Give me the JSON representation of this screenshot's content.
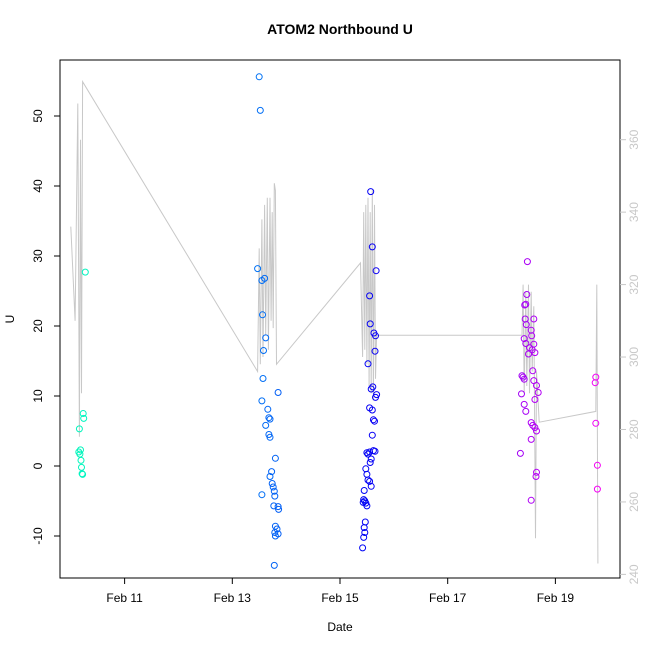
{
  "chart_data": {
    "type": "scatter",
    "title": "ATOM2 Northbound U",
    "xlabel": "Date",
    "ylabel": "U",
    "x_ticks": [
      "Feb 11",
      "Feb 13",
      "Feb 15",
      "Feb 17",
      "Feb 19"
    ],
    "x_tick_days": [
      11,
      13,
      15,
      17,
      19
    ],
    "xlim_days": [
      9.8,
      20.2
    ],
    "ylim": [
      -16,
      58
    ],
    "y_ticks": [
      -10,
      0,
      10,
      20,
      30,
      40,
      50
    ],
    "y2lim": [
      239,
      382
    ],
    "y2_ticks": [
      240,
      260,
      280,
      300,
      320,
      340,
      360
    ],
    "grid": false,
    "colors": {
      "points_start": "#33ffcc",
      "points_end": "#cc33cc",
      "line": "#c8c8c8",
      "frame": "#000000"
    },
    "points": [
      {
        "x": 10.15,
        "y": 2.0
      },
      {
        "x": 10.17,
        "y": 1.7
      },
      {
        "x": 10.18,
        "y": 2.3
      },
      {
        "x": 10.19,
        "y": 0.8
      },
      {
        "x": 10.2,
        "y": -0.2
      },
      {
        "x": 10.21,
        "y": -1.1
      },
      {
        "x": 10.22,
        "y": -1.2
      },
      {
        "x": 10.16,
        "y": 5.3
      },
      {
        "x": 10.23,
        "y": 7.5
      },
      {
        "x": 10.24,
        "y": 6.8
      },
      {
        "x": 10.27,
        "y": 27.7
      },
      {
        "x": 13.5,
        "y": 55.6
      },
      {
        "x": 13.52,
        "y": 50.8
      },
      {
        "x": 13.47,
        "y": 28.2
      },
      {
        "x": 13.55,
        "y": 26.5
      },
      {
        "x": 13.6,
        "y": 26.8
      },
      {
        "x": 13.56,
        "y": 21.6
      },
      {
        "x": 13.62,
        "y": 18.3
      },
      {
        "x": 13.58,
        "y": 16.5
      },
      {
        "x": 13.57,
        "y": 12.5
      },
      {
        "x": 13.85,
        "y": 10.5
      },
      {
        "x": 13.55,
        "y": 9.3
      },
      {
        "x": 13.66,
        "y": 8.1
      },
      {
        "x": 13.68,
        "y": 6.9
      },
      {
        "x": 13.7,
        "y": 6.7
      },
      {
        "x": 13.62,
        "y": 5.8
      },
      {
        "x": 13.68,
        "y": 4.5
      },
      {
        "x": 13.7,
        "y": 4.1
      },
      {
        "x": 13.8,
        "y": 1.1
      },
      {
        "x": 13.73,
        "y": -0.8
      },
      {
        "x": 13.7,
        "y": -1.5
      },
      {
        "x": 13.74,
        "y": -2.5
      },
      {
        "x": 13.76,
        "y": -3.0
      },
      {
        "x": 13.78,
        "y": -3.6
      },
      {
        "x": 13.55,
        "y": -4.1
      },
      {
        "x": 13.79,
        "y": -4.3
      },
      {
        "x": 13.77,
        "y": -5.7
      },
      {
        "x": 13.85,
        "y": -5.8
      },
      {
        "x": 13.86,
        "y": -6.2
      },
      {
        "x": 13.8,
        "y": -8.6
      },
      {
        "x": 13.83,
        "y": -9.0
      },
      {
        "x": 13.79,
        "y": -9.5
      },
      {
        "x": 13.85,
        "y": -9.7
      },
      {
        "x": 13.8,
        "y": -10.0
      },
      {
        "x": 13.78,
        "y": -14.2
      },
      {
        "x": 15.57,
        "y": 39.2
      },
      {
        "x": 15.6,
        "y": 31.3
      },
      {
        "x": 15.67,
        "y": 27.9
      },
      {
        "x": 15.55,
        "y": 24.3
      },
      {
        "x": 15.56,
        "y": 20.3
      },
      {
        "x": 15.63,
        "y": 19.0
      },
      {
        "x": 15.66,
        "y": 18.6
      },
      {
        "x": 15.65,
        "y": 16.4
      },
      {
        "x": 15.52,
        "y": 14.6
      },
      {
        "x": 15.61,
        "y": 11.3
      },
      {
        "x": 15.58,
        "y": 11.0
      },
      {
        "x": 15.68,
        "y": 10.2
      },
      {
        "x": 15.66,
        "y": 9.8
      },
      {
        "x": 15.55,
        "y": 8.3
      },
      {
        "x": 15.6,
        "y": 8.0
      },
      {
        "x": 15.62,
        "y": 6.6
      },
      {
        "x": 15.64,
        "y": 6.4
      },
      {
        "x": 15.6,
        "y": 4.4
      },
      {
        "x": 15.62,
        "y": 2.2
      },
      {
        "x": 15.65,
        "y": 2.1
      },
      {
        "x": 15.5,
        "y": 1.9
      },
      {
        "x": 15.52,
        "y": 1.7
      },
      {
        "x": 15.55,
        "y": 2.0
      },
      {
        "x": 15.58,
        "y": 1.0
      },
      {
        "x": 15.56,
        "y": 0.5
      },
      {
        "x": 15.48,
        "y": -0.4
      },
      {
        "x": 15.5,
        "y": -1.2
      },
      {
        "x": 15.52,
        "y": -2.0
      },
      {
        "x": 15.55,
        "y": -2.2
      },
      {
        "x": 15.58,
        "y": -2.9
      },
      {
        "x": 15.45,
        "y": -3.5
      },
      {
        "x": 15.44,
        "y": -4.8
      },
      {
        "x": 15.46,
        "y": -5.0
      },
      {
        "x": 15.48,
        "y": -5.3
      },
      {
        "x": 15.5,
        "y": -5.7
      },
      {
        "x": 15.43,
        "y": -5.2
      },
      {
        "x": 15.47,
        "y": -8.0
      },
      {
        "x": 15.45,
        "y": -8.8
      },
      {
        "x": 15.46,
        "y": -9.5
      },
      {
        "x": 15.44,
        "y": -10.2
      },
      {
        "x": 15.42,
        "y": -11.7
      },
      {
        "x": 18.48,
        "y": 29.2
      },
      {
        "x": 18.47,
        "y": 24.5
      },
      {
        "x": 18.45,
        "y": 23.1
      },
      {
        "x": 18.43,
        "y": 23.0
      },
      {
        "x": 18.6,
        "y": 21.0
      },
      {
        "x": 18.44,
        "y": 21.0
      },
      {
        "x": 18.46,
        "y": 20.2
      },
      {
        "x": 18.55,
        "y": 19.4
      },
      {
        "x": 18.56,
        "y": 18.6
      },
      {
        "x": 18.42,
        "y": 18.2
      },
      {
        "x": 18.45,
        "y": 17.5
      },
      {
        "x": 18.6,
        "y": 17.4
      },
      {
        "x": 18.52,
        "y": 16.9
      },
      {
        "x": 18.57,
        "y": 16.6
      },
      {
        "x": 18.5,
        "y": 16.0
      },
      {
        "x": 18.62,
        "y": 16.2
      },
      {
        "x": 18.58,
        "y": 13.6
      },
      {
        "x": 18.38,
        "y": 12.9
      },
      {
        "x": 18.4,
        "y": 12.7
      },
      {
        "x": 18.42,
        "y": 12.4
      },
      {
        "x": 18.6,
        "y": 12.2
      },
      {
        "x": 18.65,
        "y": 11.5
      },
      {
        "x": 18.37,
        "y": 10.3
      },
      {
        "x": 18.68,
        "y": 10.5
      },
      {
        "x": 18.62,
        "y": 9.5
      },
      {
        "x": 18.42,
        "y": 8.8
      },
      {
        "x": 18.45,
        "y": 7.8
      },
      {
        "x": 18.55,
        "y": 6.2
      },
      {
        "x": 18.58,
        "y": 5.8
      },
      {
        "x": 18.62,
        "y": 5.5
      },
      {
        "x": 18.65,
        "y": 5.0
      },
      {
        "x": 18.55,
        "y": 3.8
      },
      {
        "x": 18.35,
        "y": 1.8
      },
      {
        "x": 18.65,
        "y": -0.9
      },
      {
        "x": 18.64,
        "y": -1.5
      },
      {
        "x": 18.55,
        "y": -4.9
      },
      {
        "x": 19.75,
        "y": 12.7
      },
      {
        "x": 19.74,
        "y": 11.9
      },
      {
        "x": 19.75,
        "y": 6.1
      },
      {
        "x": 19.78,
        "y": 0.1
      },
      {
        "x": 19.78,
        "y": -3.3
      }
    ],
    "line2": [
      [
        10.0,
        336
      ],
      [
        10.08,
        310
      ],
      [
        10.13,
        370
      ],
      [
        10.16,
        278
      ],
      [
        10.18,
        360
      ],
      [
        10.2,
        290
      ],
      [
        10.22,
        376
      ],
      [
        13.47,
        296
      ],
      [
        13.5,
        330
      ],
      [
        13.52,
        298
      ],
      [
        13.55,
        338
      ],
      [
        13.57,
        300
      ],
      [
        13.6,
        342
      ],
      [
        13.62,
        306
      ],
      [
        13.65,
        344
      ],
      [
        13.67,
        302
      ],
      [
        13.7,
        344
      ],
      [
        13.72,
        310
      ],
      [
        13.74,
        340
      ],
      [
        13.76,
        308
      ],
      [
        13.78,
        348
      ],
      [
        13.8,
        346
      ],
      [
        13.82,
        298
      ],
      [
        15.38,
        326
      ],
      [
        15.42,
        300
      ],
      [
        15.44,
        340
      ],
      [
        15.46,
        302
      ],
      [
        15.48,
        342
      ],
      [
        15.5,
        298
      ],
      [
        15.52,
        344
      ],
      [
        15.54,
        292
      ],
      [
        15.56,
        340
      ],
      [
        15.58,
        290
      ],
      [
        15.6,
        346
      ],
      [
        15.62,
        288
      ],
      [
        15.64,
        342
      ],
      [
        15.66,
        294
      ],
      [
        15.68,
        306
      ],
      [
        18.38,
        306
      ],
      [
        18.4,
        320
      ],
      [
        18.42,
        290
      ],
      [
        18.45,
        318
      ],
      [
        18.47,
        292
      ],
      [
        18.5,
        320
      ],
      [
        18.52,
        290
      ],
      [
        18.55,
        318
      ],
      [
        18.57,
        296
      ],
      [
        18.6,
        314
      ],
      [
        18.63,
        250
      ],
      [
        18.65,
        296
      ],
      [
        18.7,
        282
      ],
      [
        19.75,
        285
      ],
      [
        19.77,
        320
      ],
      [
        19.79,
        243
      ]
    ]
  }
}
